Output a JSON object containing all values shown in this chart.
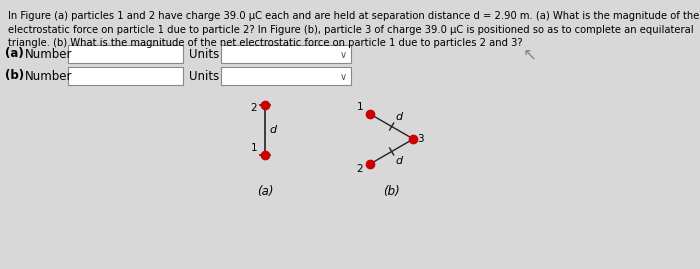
{
  "bg_color": "#d8d8d8",
  "text_color": "#000000",
  "text_problem": "In Figure (a) particles 1 and 2 have charge 39.0 μC each and are held at separation distance d = 2.90 m. (a) What is the magnitude of the\nelectrostatic force on particle 1 due to particle 2? In Figure (b), particle 3 of charge 39.0 μC is positioned so as to complete an equilateral\ntriangle. (b) What is the magnitude of the net electrostatic force on particle 1 due to particles 2 and 3?",
  "particle_color": "#cc0000",
  "line_color": "#222222",
  "fig_a_label": "(a)",
  "fig_b_label": "(b)",
  "label_a": "(a) Number",
  "label_b": "(b) Number",
  "units_label": "Units",
  "particle_size": 6
}
